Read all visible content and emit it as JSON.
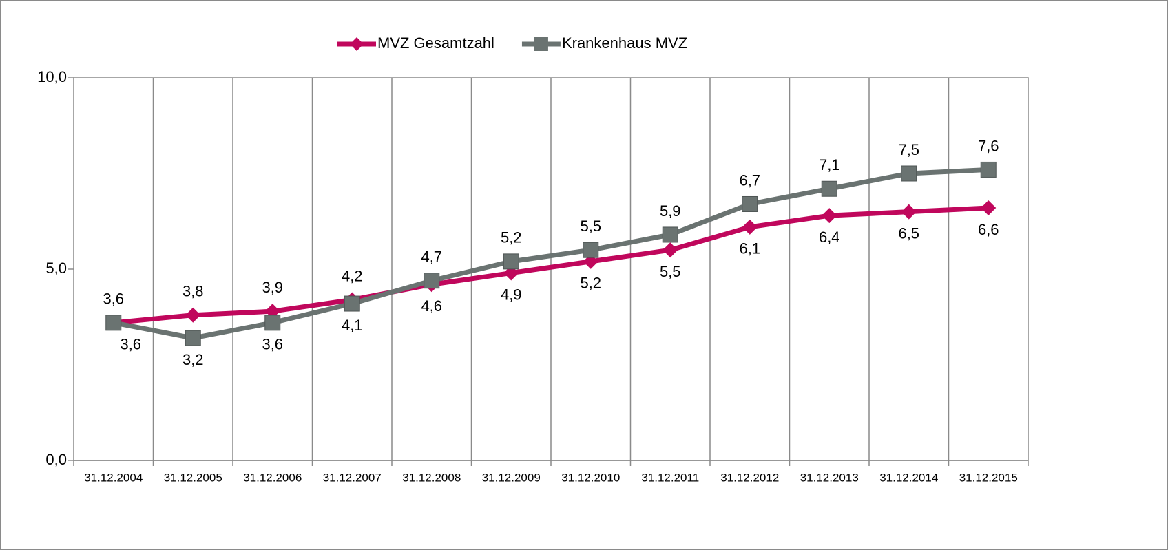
{
  "chart_data": {
    "type": "line",
    "categories": [
      "31.12.2004",
      "31.12.2005",
      "31.12.2006",
      "31.12.2007",
      "31.12.2008",
      "31.12.2009",
      "31.12.2010",
      "31.12.2011",
      "31.12.2012",
      "31.12.2013",
      "31.12.2014",
      "31.12.2015"
    ],
    "series": [
      {
        "name": "MVZ Gesamtzahl",
        "color": "#c0075c",
        "marker": "diamond",
        "values": [
          3.6,
          3.8,
          3.9,
          4.2,
          4.6,
          4.9,
          5.2,
          5.5,
          6.1,
          6.4,
          6.5,
          6.6
        ],
        "value_labels": [
          "3,6",
          "3,8",
          "3,9",
          "4,2",
          "4,6",
          "4,9",
          "5,2",
          "5,5",
          "6,1",
          "6,4",
          "6,5",
          "6,6"
        ]
      },
      {
        "name": "Krankenhaus MVZ",
        "color": "#6a7371",
        "marker": "square",
        "values": [
          3.6,
          3.2,
          3.6,
          4.1,
          4.7,
          5.2,
          5.5,
          5.9,
          6.7,
          7.1,
          7.5,
          7.6
        ],
        "value_labels": [
          "3,6",
          "3,2",
          "3,6",
          "4,1",
          "4,7",
          "5,2",
          "5,5",
          "5,9",
          "6,7",
          "7,1",
          "7,5",
          "7,6"
        ]
      }
    ],
    "ylim": [
      0,
      10
    ],
    "yticks": [
      {
        "value": 0,
        "label": "0,0"
      },
      {
        "value": 5,
        "label": "5,0"
      },
      {
        "value": 10,
        "label": "10,0"
      }
    ],
    "legend": "top"
  }
}
